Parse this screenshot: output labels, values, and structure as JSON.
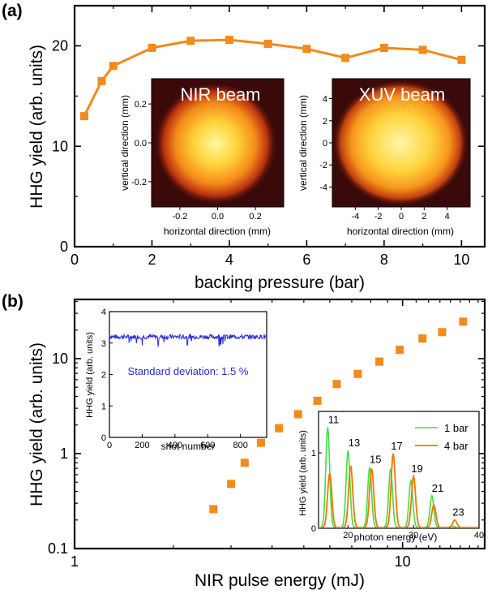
{
  "colors": {
    "series_orange": "#f28a1c",
    "stability_blue": "#2a2ad8",
    "spectrum_green": "#44dd44",
    "spectrum_orange": "#f07800",
    "beam_background": "#3a0a0a"
  },
  "chart_data": [
    {
      "panel": "(a)",
      "type": "line",
      "xlabel": "backing pressure (bar)",
      "ylabel": "HHG yield (arb. units)",
      "xlim": [
        0,
        10.6
      ],
      "ylim": [
        0,
        24
      ],
      "xticks": [
        "0",
        "2",
        "4",
        "6",
        "8",
        "10"
      ],
      "yticks": [
        "0",
        "10",
        "20"
      ],
      "x": [
        0.25,
        0.7,
        1.0,
        2.0,
        3.0,
        4.0,
        5.0,
        6.0,
        7.0,
        8.0,
        9.0,
        10.0
      ],
      "values": [
        13.0,
        16.5,
        18.0,
        19.8,
        20.5,
        20.6,
        20.2,
        19.7,
        18.8,
        19.8,
        19.6,
        18.6
      ],
      "insets": [
        {
          "type": "heatmap",
          "title": "NIR beam",
          "xlabel": "horizontal direction (mm)",
          "ylabel": "vertical direction (mm)",
          "xticks": [
            "-0.2",
            "0.0",
            "0.2"
          ],
          "yticks": [
            "-0.2",
            "0.0",
            "0.2"
          ],
          "xlim": [
            -0.35,
            0.35
          ],
          "ylim": [
            -0.33,
            0.33
          ]
        },
        {
          "type": "heatmap",
          "title": "XUV beam",
          "xlabel": "horizontal direction (mm)",
          "ylabel": "vertical direction (mm)",
          "xticks": [
            "-4",
            "-2",
            "0",
            "2",
            "4"
          ],
          "yticks": [
            "-4",
            "-2",
            "0",
            "2",
            "4"
          ],
          "xlim": [
            -6,
            6
          ],
          "ylim": [
            -5.8,
            5.8
          ]
        }
      ]
    },
    {
      "panel": "(b)",
      "type": "scatter",
      "xlabel": "NIR pulse energy (mJ)",
      "ylabel": "HHG yield (arb. units)",
      "xscale": "log",
      "yscale": "log",
      "xlim": [
        1,
        17.8
      ],
      "ylim": [
        0.1,
        42
      ],
      "xticks": [
        "1",
        "10"
      ],
      "yticks": [
        "0.1",
        "1",
        "10"
      ],
      "x": [
        2.65,
        3.0,
        3.3,
        3.7,
        4.2,
        4.8,
        5.5,
        6.3,
        7.3,
        8.5,
        9.8,
        11.5,
        13.2,
        15.3
      ],
      "values": [
        0.26,
        0.48,
        0.8,
        1.3,
        1.85,
        2.6,
        3.6,
        5.4,
        6.9,
        9.3,
        12.4,
        16.3,
        19.0,
        24.5
      ],
      "insets": [
        {
          "type": "line",
          "xlabel": "shot number",
          "ylabel": "HHG yield (arb. units)",
          "xticks": [
            "0",
            "200",
            "400",
            "600",
            "800"
          ],
          "yticks": [
            "0",
            "1",
            "2",
            "3",
            "4"
          ],
          "xlim": [
            0,
            960
          ],
          "ylim": [
            0,
            4
          ],
          "annotation": "Standard deviation: 1.5 %",
          "mean": 3.2,
          "std_percent": 1.5
        },
        {
          "type": "line",
          "xlabel": "photon energy (eV)",
          "ylabel": "HHG yield (arb. units)",
          "xticks": [
            "20",
            "30",
            "40"
          ],
          "yticks": [
            "0",
            "1"
          ],
          "xlim": [
            15.5,
            40
          ],
          "ylim": [
            0,
            1.55
          ],
          "harmonic_labels": [
            "11",
            "13",
            "15",
            "17",
            "19",
            "21",
            "23"
          ],
          "series": [
            {
              "name": "1 bar",
              "peaks": [
                [
                  16.9,
                  1.33
                ],
                [
                  20.0,
                  1.02
                ],
                [
                  23.3,
                  0.8
                ],
                [
                  26.5,
                  0.78
                ],
                [
                  29.6,
                  0.62
                ],
                [
                  32.8,
                  0.42
                ],
                [
                  35.9,
                  0.02
                ]
              ]
            },
            {
              "name": "4 bar",
              "peaks": [
                [
                  17.2,
                  0.72
                ],
                [
                  20.4,
                  0.82
                ],
                [
                  23.6,
                  0.78
                ],
                [
                  26.9,
                  0.98
                ],
                [
                  30.0,
                  0.68
                ],
                [
                  33.1,
                  0.3
                ],
                [
                  36.3,
                  0.1
                ]
              ]
            }
          ]
        }
      ]
    }
  ]
}
